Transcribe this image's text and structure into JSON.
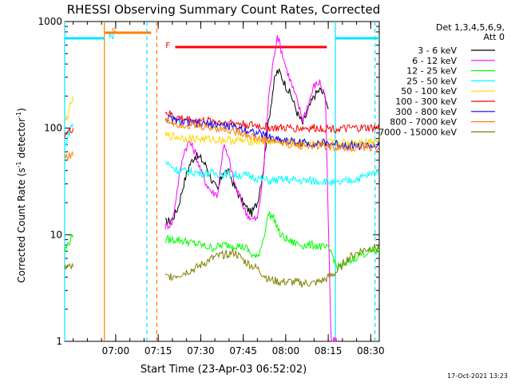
{
  "chart_data": {
    "type": "line",
    "title": "RHESSI Observing Summary Count Rates, Corrected",
    "xlabel": "Start Time (23-Apr-03 06:52:02)",
    "ylabel_main": "Corrected Count Rate (s",
    "ylabel_sup1": "-1",
    "ylabel_mid": " detector",
    "ylabel_sup2": "-1",
    "ylabel_end": ")",
    "yscale": "log",
    "ylim": [
      1,
      1000
    ],
    "xlim_minutes": [
      402,
      513
    ],
    "x_ticks": [
      {
        "t": 420,
        "label": "07:00"
      },
      {
        "t": 435,
        "label": "07:15"
      },
      {
        "t": 450,
        "label": "07:30"
      },
      {
        "t": 465,
        "label": "07:45"
      },
      {
        "t": 480,
        "label": "08:00"
      },
      {
        "t": 495,
        "label": "08:15"
      },
      {
        "t": 510,
        "label": "08:30"
      }
    ],
    "y_ticks": [
      {
        "v": 1,
        "label": "1"
      },
      {
        "v": 10,
        "label": "10"
      },
      {
        "v": 100,
        "label": "100"
      },
      {
        "v": 1000,
        "label": "1000"
      }
    ],
    "legend_header_1": "Det 1,3,4,5,6,9,",
    "legend_header_2": "Att 0",
    "legend_position": "right",
    "timestamp": "17-Oct-2021 13:23",
    "flags": [
      {
        "label": "S",
        "color": "#ff7f00",
        "t_start": 416.2,
        "t_end": 432.5
      },
      {
        "label": "N",
        "color": "#00e5ff",
        "t_start": 402.0,
        "t_end": 416.0
      },
      {
        "label": "N",
        "color": "#00e5ff",
        "t_start": 497.5,
        "t_end": 513.0
      },
      {
        "label": "F",
        "color": "#ff0000",
        "t_start": 441.0,
        "t_end": 494.5
      }
    ],
    "vlines": [
      {
        "t": 402.0,
        "color": "#00e5ff",
        "dashed": false
      },
      {
        "t": 416.0,
        "color": "#ff7f00",
        "dashed": false
      },
      {
        "t": 431.0,
        "color": "#00e5ff",
        "dashed": true
      },
      {
        "t": 434.5,
        "color": "#ff7f00",
        "dashed": true
      },
      {
        "t": 497.5,
        "color": "#00e5ff",
        "dashed": false
      },
      {
        "t": 511.5,
        "color": "#00e5ff",
        "dashed": true
      }
    ],
    "gaps_minutes": [
      [
        414.5,
        437.0
      ]
    ],
    "series": [
      {
        "name": "3 - 6 keV",
        "color": "#000000",
        "points": [
          [
            437.5,
            13
          ],
          [
            440,
            14
          ],
          [
            442,
            18
          ],
          [
            444,
            30
          ],
          [
            446,
            45
          ],
          [
            448,
            55
          ],
          [
            450,
            52
          ],
          [
            452,
            44
          ],
          [
            454,
            32
          ],
          [
            456,
            26
          ],
          [
            458,
            40
          ],
          [
            460,
            38
          ],
          [
            462,
            28
          ],
          [
            464,
            22
          ],
          [
            466,
            18
          ],
          [
            468,
            16
          ],
          [
            470,
            20
          ],
          [
            472,
            40
          ],
          [
            474,
            120
          ],
          [
            476,
            280
          ],
          [
            477,
            340
          ],
          [
            478,
            330
          ],
          [
            480,
            250
          ],
          [
            482,
            200
          ],
          [
            484,
            140
          ],
          [
            486,
            110
          ],
          [
            488,
            150
          ],
          [
            490,
            200
          ],
          [
            492,
            230
          ],
          [
            494,
            200
          ],
          [
            495,
            150
          ]
        ]
      },
      {
        "name": "6 - 12 keV",
        "color": "#ff00ff",
        "points": [
          [
            437.5,
            12
          ],
          [
            440,
            13
          ],
          [
            442,
            30
          ],
          [
            444,
            60
          ],
          [
            446,
            75
          ],
          [
            448,
            60
          ],
          [
            450,
            40
          ],
          [
            452,
            30
          ],
          [
            454,
            25
          ],
          [
            456,
            24
          ],
          [
            458,
            70
          ],
          [
            460,
            50
          ],
          [
            462,
            30
          ],
          [
            464,
            22
          ],
          [
            466,
            16
          ],
          [
            468,
            14
          ],
          [
            470,
            14
          ],
          [
            472,
            35
          ],
          [
            474,
            200
          ],
          [
            476,
            500
          ],
          [
            477,
            750
          ],
          [
            478,
            600
          ],
          [
            480,
            380
          ],
          [
            482,
            260
          ],
          [
            484,
            180
          ],
          [
            486,
            120
          ],
          [
            488,
            170
          ],
          [
            490,
            250
          ],
          [
            492,
            270
          ],
          [
            494,
            200
          ],
          [
            496,
            1
          ],
          [
            498,
            1
          ]
        ]
      },
      {
        "name": "12 - 25 keV",
        "color": "#00ff00",
        "points": [
          [
            402,
            7
          ],
          [
            403,
            8
          ],
          [
            404,
            9
          ],
          [
            405,
            10
          ],
          [
            437.5,
            9
          ],
          [
            442,
            9
          ],
          [
            446,
            8.5
          ],
          [
            450,
            8
          ],
          [
            454,
            7.5
          ],
          [
            458,
            8
          ],
          [
            462,
            8
          ],
          [
            466,
            7.5
          ],
          [
            468,
            6.5
          ],
          [
            470,
            6
          ],
          [
            472,
            9
          ],
          [
            474,
            16
          ],
          [
            476,
            14
          ],
          [
            478,
            10
          ],
          [
            482,
            8.5
          ],
          [
            486,
            8
          ],
          [
            490,
            8
          ],
          [
            494,
            7.5
          ],
          [
            496,
            7
          ],
          [
            498,
            5
          ],
          [
            500,
            5
          ],
          [
            506,
            6.5
          ],
          [
            510,
            7
          ],
          [
            513,
            7
          ]
        ]
      },
      {
        "name": "25 - 50 keV",
        "color": "#00ffff",
        "points": [
          [
            402,
            65
          ],
          [
            403,
            80
          ],
          [
            404,
            100
          ],
          [
            405,
            110
          ],
          [
            437.5,
            48
          ],
          [
            442,
            40
          ],
          [
            450,
            38
          ],
          [
            460,
            37
          ],
          [
            466,
            36
          ],
          [
            470,
            34
          ],
          [
            474,
            32
          ],
          [
            480,
            33
          ],
          [
            486,
            32
          ],
          [
            494,
            32
          ],
          [
            498,
            30
          ],
          [
            502,
            32
          ],
          [
            506,
            34
          ],
          [
            510,
            37
          ],
          [
            513,
            40
          ]
        ]
      },
      {
        "name": "50 - 100 keV",
        "color": "#ffd700",
        "points": [
          [
            402,
            110
          ],
          [
            403,
            130
          ],
          [
            404,
            160
          ],
          [
            405,
            200
          ],
          [
            437.5,
            85
          ],
          [
            446,
            80
          ],
          [
            456,
            78
          ],
          [
            466,
            76
          ],
          [
            476,
            75
          ],
          [
            486,
            72
          ],
          [
            494,
            72
          ],
          [
            500,
            73
          ],
          [
            506,
            75
          ],
          [
            510,
            76
          ],
          [
            513,
            78
          ]
        ]
      },
      {
        "name": "100 - 300 keV",
        "color": "#ff0000",
        "points": [
          [
            402,
            88
          ],
          [
            403,
            90
          ],
          [
            404,
            95
          ],
          [
            405,
            100
          ],
          [
            437.5,
            140
          ],
          [
            442,
            125
          ],
          [
            448,
            118
          ],
          [
            456,
            115
          ],
          [
            464,
            110
          ],
          [
            470,
            105
          ],
          [
            476,
            100
          ],
          [
            482,
            100
          ],
          [
            488,
            100
          ],
          [
            494,
            100
          ],
          [
            500,
            98
          ],
          [
            506,
            100
          ],
          [
            513,
            100
          ]
        ]
      },
      {
        "name": "300 - 800 keV",
        "color": "#0000ff",
        "points": [
          [
            437.5,
            125
          ],
          [
            442,
            115
          ],
          [
            448,
            110
          ],
          [
            456,
            108
          ],
          [
            464,
            100
          ],
          [
            470,
            90
          ],
          [
            476,
            80
          ],
          [
            482,
            75
          ],
          [
            488,
            72
          ],
          [
            494,
            72
          ],
          [
            500,
            70
          ],
          [
            506,
            68
          ],
          [
            513,
            68
          ]
        ]
      },
      {
        "name": "800 - 7000 keV",
        "color": "#ff7f00",
        "points": [
          [
            402,
            55
          ],
          [
            404,
            55
          ],
          [
            405,
            55
          ],
          [
            437.5,
            120
          ],
          [
            442,
            110
          ],
          [
            448,
            105
          ],
          [
            456,
            100
          ],
          [
            464,
            92
          ],
          [
            470,
            80
          ],
          [
            476,
            75
          ],
          [
            482,
            70
          ],
          [
            488,
            68
          ],
          [
            494,
            68
          ],
          [
            500,
            66
          ],
          [
            506,
            66
          ],
          [
            513,
            66
          ]
        ]
      },
      {
        "name": "7000 - 15000 keV",
        "color": "#808000",
        "points": [
          [
            402,
            5
          ],
          [
            403,
            5
          ],
          [
            404,
            5
          ],
          [
            405,
            5
          ],
          [
            437.5,
            4
          ],
          [
            442,
            4.2
          ],
          [
            448,
            4.8
          ],
          [
            454,
            6
          ],
          [
            458,
            6.5
          ],
          [
            462,
            6.8
          ],
          [
            466,
            5.5
          ],
          [
            470,
            4.8
          ],
          [
            474,
            3.8
          ],
          [
            478,
            3.6
          ],
          [
            482,
            3.6
          ],
          [
            486,
            3.5
          ],
          [
            490,
            3.5
          ],
          [
            494,
            3.8
          ],
          [
            498,
            4.5
          ],
          [
            502,
            6
          ],
          [
            506,
            7
          ],
          [
            510,
            7.5
          ],
          [
            513,
            7.5
          ]
        ]
      }
    ]
  }
}
